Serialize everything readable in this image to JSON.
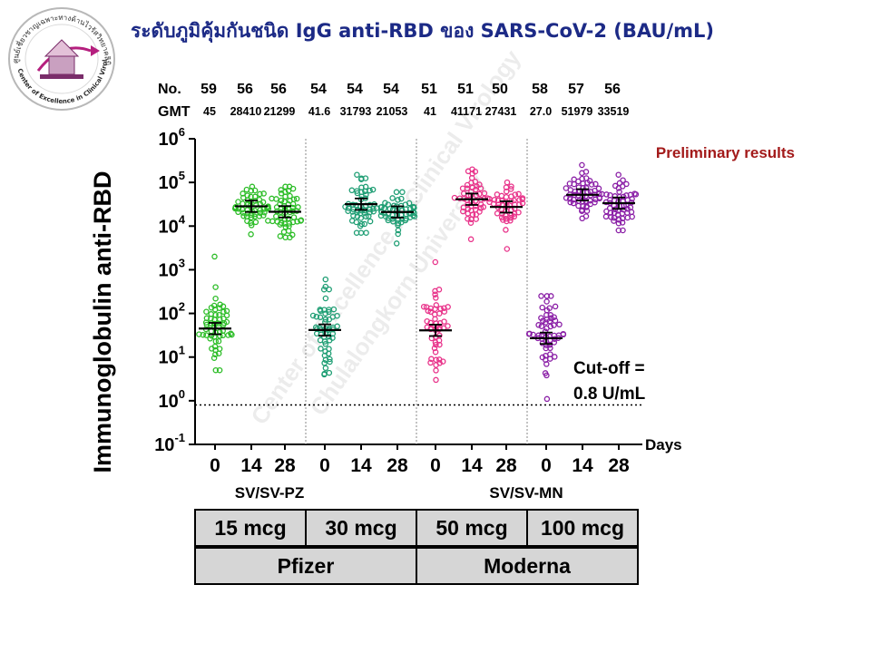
{
  "title": "ระดับภูมิคุ้มกันชนิด IgG anti-RBD ของ SARS-CoV-2 (BAU/mL)",
  "logo": {
    "text_top": "ศูนย์เชี่ยวชาญเฉพาะทางด้านไวรัสวิทยาคลินิก",
    "text_bottom": "Center of Excellence in Clinical Virology"
  },
  "watermark": [
    "Center of Excellence in Clinical Virology",
    "Chulalongkorn University"
  ],
  "preliminary_label": "Preliminary results",
  "cutoff_label_line1": "Cut-off =",
  "cutoff_label_line2": "0.8 U/mL",
  "colors": {
    "pz15": "#2dbd28",
    "pz30": "#1f9e74",
    "mn50": "#e8338a",
    "mn100": "#8a1ea6",
    "prelim": "#a31a1a",
    "title": "#1c2a86"
  },
  "chart_data": {
    "type": "scatter",
    "ylabel": "Immunoglobulin anti-RBD",
    "xlabel": "Days",
    "yscale": "log",
    "ylim": [
      0.1,
      1000000
    ],
    "yticks": [
      {
        "base": "10",
        "exp": "6"
      },
      {
        "base": "10",
        "exp": "5"
      },
      {
        "base": "10",
        "exp": "4"
      },
      {
        "base": "10",
        "exp": "3"
      },
      {
        "base": "10",
        "exp": "2"
      },
      {
        "base": "10",
        "exp": "1"
      },
      {
        "base": "10",
        "exp": "0"
      },
      {
        "base": "10",
        "exp": "-1"
      }
    ],
    "cutoff": 0.8,
    "row_labels": {
      "n": "No.",
      "gmt": "GMT"
    },
    "categories": [
      "0",
      "14",
      "28",
      "0",
      "14",
      "28",
      "0",
      "14",
      "28",
      "0",
      "14",
      "28"
    ],
    "n": [
      "59",
      "56",
      "56",
      "54",
      "54",
      "54",
      "51",
      "51",
      "50",
      "58",
      "57",
      "56"
    ],
    "gmt_labels": [
      "45",
      "28410",
      "21299",
      "41.6",
      "31793",
      "21053",
      "41",
      "41171",
      "27431",
      "27.0",
      "51979",
      "33519"
    ],
    "gmt": [
      45,
      28410,
      21299,
      41.6,
      31793,
      21053,
      41,
      41171,
      27431,
      27.0,
      51979,
      33519
    ],
    "groups": [
      {
        "name": "15 mcg",
        "color_key": "pz15",
        "days": [
          0,
          1,
          2
        ],
        "spread": [
          [
            5,
            2000
          ],
          [
            6500,
            80000
          ],
          [
            5500,
            80000
          ]
        ]
      },
      {
        "name": "30 mcg",
        "color_key": "pz30",
        "days": [
          3,
          4,
          5
        ],
        "spread": [
          [
            4,
            600
          ],
          [
            7000,
            150000
          ],
          [
            4000,
            60000
          ]
        ]
      },
      {
        "name": "50 mcg",
        "color_key": "mn50",
        "days": [
          6,
          7,
          8
        ],
        "spread": [
          [
            3,
            1500
          ],
          [
            5000,
            200000
          ],
          [
            3000,
            100000
          ]
        ]
      },
      {
        "name": "100 mcg",
        "color_key": "mn100",
        "days": [
          9,
          10,
          11
        ],
        "spread": [
          [
            1.1,
            250
          ],
          [
            15000,
            250000
          ],
          [
            8000,
            150000
          ]
        ]
      }
    ],
    "schedule_labels": [
      "SV/SV-PZ",
      "SV/SV-MN"
    ],
    "vaccine_labels": [
      "Pfizer",
      "Moderna"
    ]
  }
}
